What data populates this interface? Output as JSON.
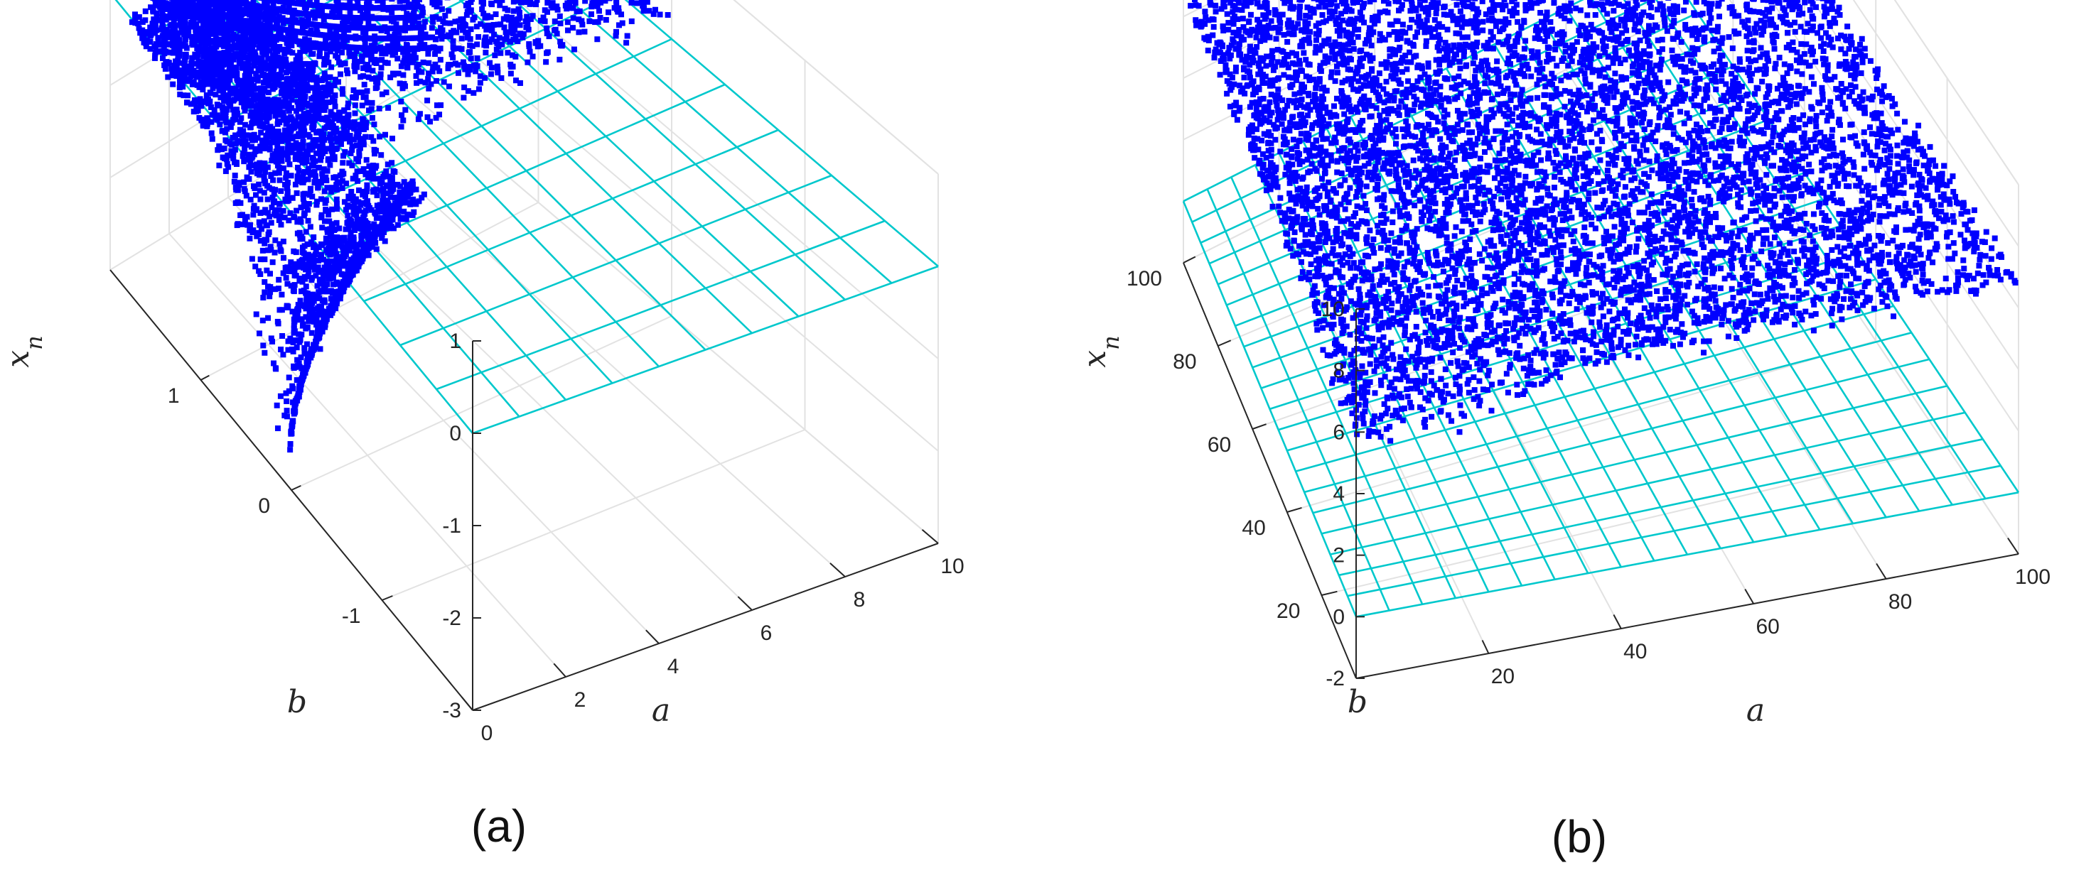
{
  "colors": {
    "points": "#0000ff",
    "plane": "#00c8cc",
    "grid": "#e2e2e2",
    "axis": "#262626"
  },
  "chart_data": [
    {
      "panel_label": "(a)",
      "type": "scatter",
      "title": "",
      "xlabel": "a",
      "ylabel": "b",
      "zlabel": "x_n",
      "zlabel_text": "x",
      "zlabel_sub": "n",
      "xlim": [
        0,
        10
      ],
      "ylim": [
        -2,
        2
      ],
      "zlim": [
        -3,
        1
      ],
      "x_ticks": [
        "0",
        "2",
        "4",
        "6",
        "8",
        "10"
      ],
      "y_ticks": [
        "-1",
        "0",
        "1"
      ],
      "z_ticks": [
        "-3",
        "-2",
        "-1",
        "0",
        "1"
      ],
      "grid": true,
      "plane": {
        "z": 0,
        "x_range": [
          0,
          10
        ],
        "y_range": [
          -2,
          2
        ],
        "divisions": 10
      },
      "series": [
        {
          "values_description_regions": [
            {
              "region": "upper-sheet",
              "x": [
                0.3,
                10
              ],
              "y": [
                0,
                2
              ],
              "z": [
                0,
                1
              ]
            },
            {
              "region": "lower-wedge",
              "x": [
                0,
                3
              ],
              "y": [
                -0.2,
                1.8
              ],
              "z": [
                -3,
                0
              ]
            }
          ]
        }
      ]
    },
    {
      "panel_label": "(b)",
      "type": "scatter",
      "title": "",
      "xlabel": "a",
      "ylabel": "b",
      "zlabel": "x_n",
      "zlabel_text": "x",
      "zlabel_sub": "n",
      "xlim": [
        0,
        100
      ],
      "ylim": [
        0,
        100
      ],
      "zlim": [
        -2,
        10
      ],
      "x_ticks": [
        "20",
        "40",
        "60",
        "80",
        "100"
      ],
      "y_ticks": [
        "20",
        "40",
        "60",
        "80",
        "100"
      ],
      "z_ticks": [
        "-2",
        "0",
        "2",
        "4",
        "6",
        "8",
        "10"
      ],
      "grid": true,
      "plane": {
        "z": 0,
        "x_range": [
          0,
          100
        ],
        "y_range": [
          0,
          100
        ],
        "divisions": 20
      },
      "series": [
        {
          "values_description_regions": [
            {
              "region": "noisy-sheet",
              "x": [
                0,
                100
              ],
              "y": [
                0,
                100
              ],
              "z": [
                4,
                10
              ]
            }
          ]
        }
      ]
    }
  ]
}
